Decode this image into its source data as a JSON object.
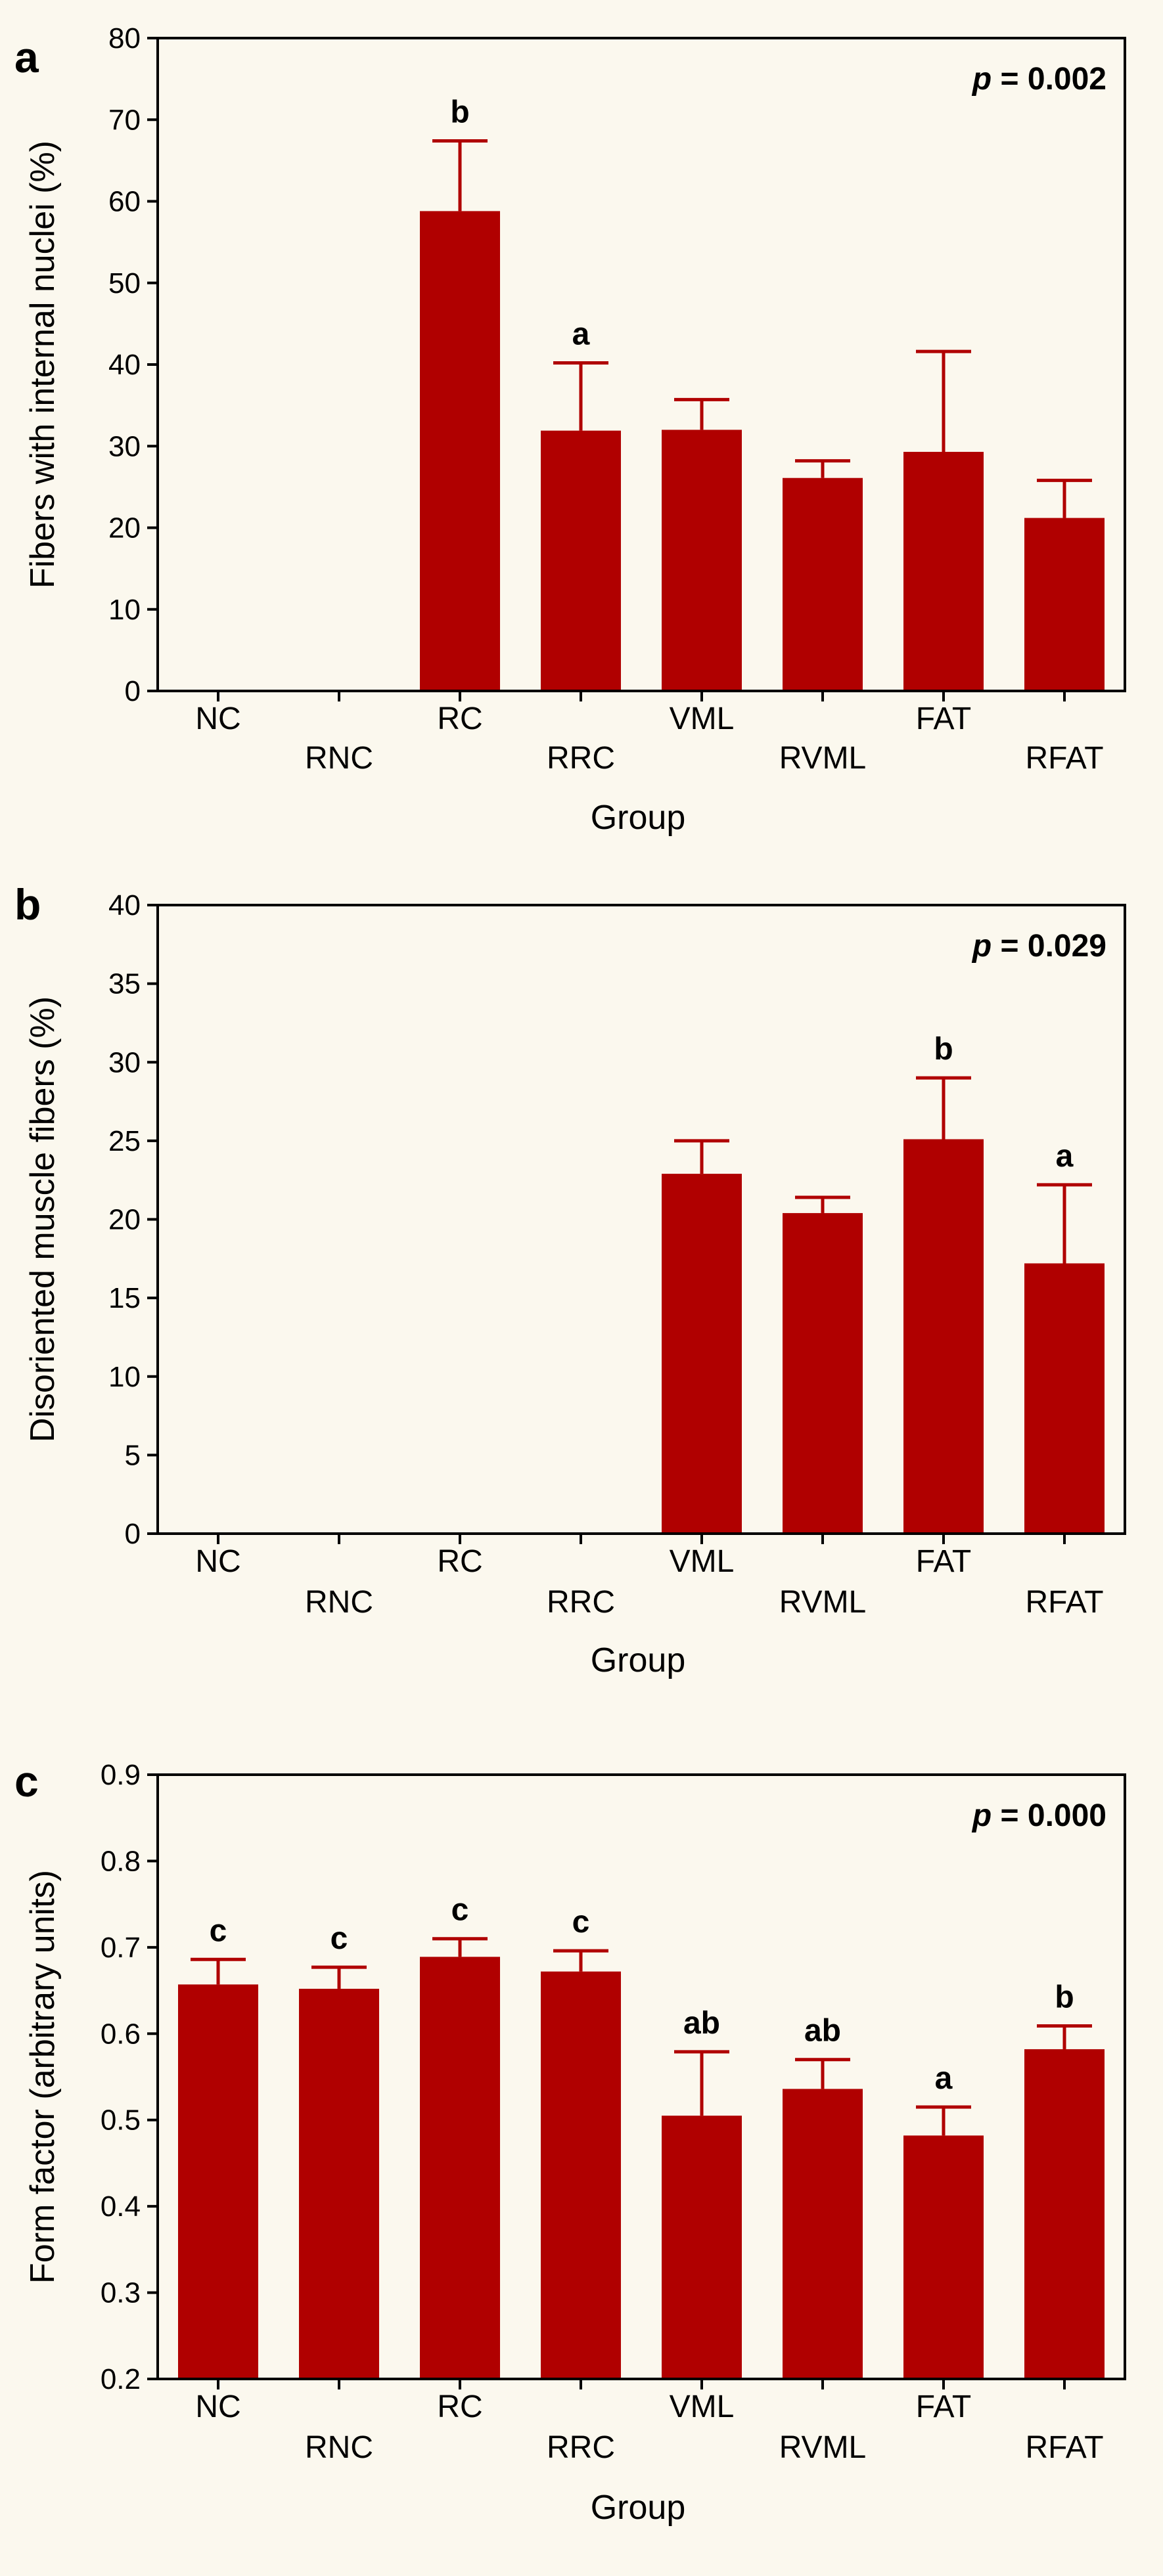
{
  "colors": {
    "bar": "#b00000",
    "axis": "#000000",
    "background": "#fbf8ee"
  },
  "chart_data": [
    {
      "type": "bar",
      "panel": "a",
      "xlabel": "Group",
      "ylabel": "Fibers with internal nuclei (%)",
      "ylim": [
        0,
        80
      ],
      "yticks": [
        0,
        10,
        20,
        30,
        40,
        50,
        60,
        70,
        80
      ],
      "ytick_labels": [
        "0",
        "10",
        "20",
        "30",
        "40",
        "50",
        "60",
        "70",
        "80"
      ],
      "p_prefix": "p",
      "p_value": "= 0.002",
      "categories": [
        "NC",
        "RNC",
        "RC",
        "RRC",
        "VML",
        "RVML",
        "FAT",
        "RFAT"
      ],
      "values": [
        0,
        0,
        58.8,
        31.9,
        32.0,
        26.1,
        29.3,
        21.2
      ],
      "errors": [
        0,
        0,
        8.6,
        8.3,
        3.7,
        2.1,
        12.3,
        4.6
      ],
      "significance": [
        "",
        "",
        "b",
        "a",
        "",
        "",
        "",
        ""
      ]
    },
    {
      "type": "bar",
      "panel": "b",
      "xlabel": "Group",
      "ylabel": "Disoriented muscle fibers (%)",
      "ylim": [
        0,
        40
      ],
      "yticks": [
        0,
        5,
        10,
        15,
        20,
        25,
        30,
        35,
        40
      ],
      "ytick_labels": [
        "0",
        "5",
        "10",
        "15",
        "20",
        "25",
        "30",
        "35",
        "40"
      ],
      "p_prefix": "p",
      "p_value": "= 0.029",
      "categories": [
        "NC",
        "RNC",
        "RC",
        "RRC",
        "VML",
        "RVML",
        "FAT",
        "RFAT"
      ],
      "values": [
        0,
        0,
        0,
        0,
        22.9,
        20.4,
        25.1,
        17.2
      ],
      "errors": [
        0,
        0,
        0,
        0,
        2.1,
        1.0,
        3.9,
        5.0
      ],
      "significance": [
        "",
        "",
        "",
        "",
        "",
        "",
        "b",
        "a"
      ]
    },
    {
      "type": "bar",
      "panel": "c",
      "xlabel": "Group",
      "ylabel": "Form factor (arbitrary units)",
      "ylim": [
        0.2,
        0.9
      ],
      "yticks": [
        0.2,
        0.3,
        0.4,
        0.5,
        0.6,
        0.7,
        0.8,
        0.9
      ],
      "ytick_labels": [
        "0.2",
        "0.3",
        "0.4",
        "0.5",
        "0.6",
        "0.7",
        "0.8",
        "0.9"
      ],
      "p_prefix": "p",
      "p_value": "= 0.000",
      "categories": [
        "NC",
        "RNC",
        "RC",
        "RRC",
        "VML",
        "RVML",
        "FAT",
        "RFAT"
      ],
      "values": [
        0.657,
        0.652,
        0.689,
        0.672,
        0.505,
        0.536,
        0.482,
        0.582
      ],
      "errors": [
        0.029,
        0.025,
        0.021,
        0.024,
        0.074,
        0.034,
        0.033,
        0.027
      ],
      "significance": [
        "c",
        "c",
        "c",
        "c",
        "ab",
        "ab",
        "a",
        "b"
      ]
    }
  ]
}
